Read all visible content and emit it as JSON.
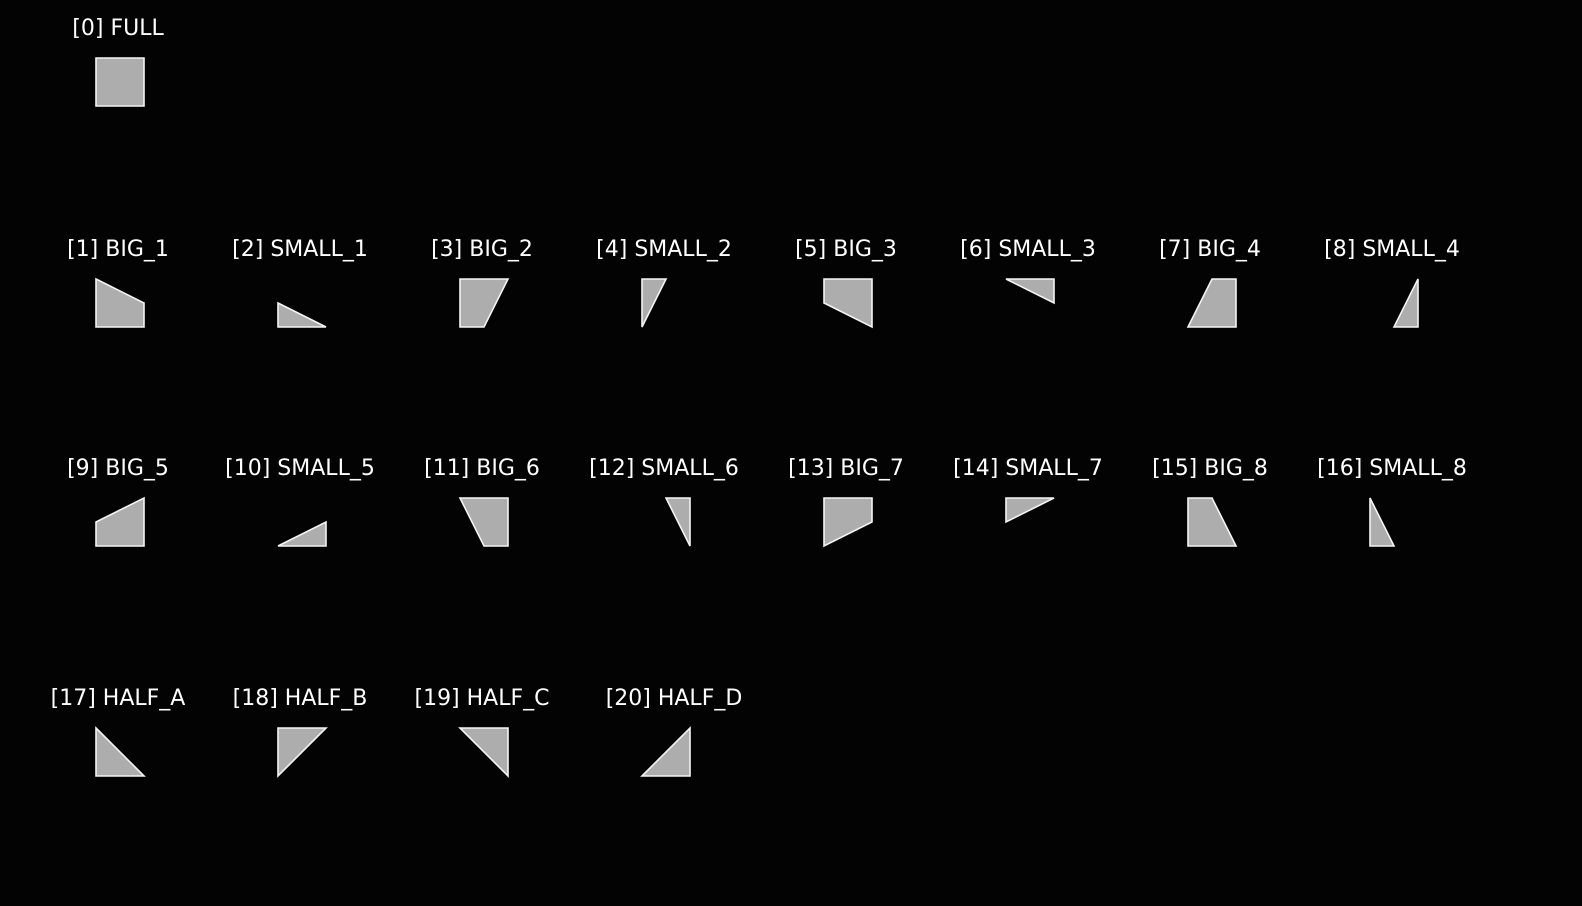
{
  "colors": {
    "background": "#030303",
    "label": "#ffffff",
    "shape_fill": "#adadad",
    "shape_outline": "#f4f4f4"
  },
  "tiles": [
    {
      "label": "[0] FULL",
      "shape": "full"
    },
    {
      "label": "[1] BIG_1",
      "shape": "big_1"
    },
    {
      "label": "[2] SMALL_1",
      "shape": "small_1"
    },
    {
      "label": "[3] BIG_2",
      "shape": "big_2"
    },
    {
      "label": "[4] SMALL_2",
      "shape": "small_2"
    },
    {
      "label": "[5] BIG_3",
      "shape": "big_3"
    },
    {
      "label": "[6] SMALL_3",
      "shape": "small_3"
    },
    {
      "label": "[7] BIG_4",
      "shape": "big_4"
    },
    {
      "label": "[8] SMALL_4",
      "shape": "small_4"
    },
    {
      "label": "[9] BIG_5",
      "shape": "big_5"
    },
    {
      "label": "[10] SMALL_5",
      "shape": "small_5"
    },
    {
      "label": "[11] BIG_6",
      "shape": "big_6"
    },
    {
      "label": "[12] SMALL_6",
      "shape": "small_6"
    },
    {
      "label": "[13] BIG_7",
      "shape": "big_7"
    },
    {
      "label": "[14] SMALL_7",
      "shape": "small_7"
    },
    {
      "label": "[15] BIG_8",
      "shape": "big_8"
    },
    {
      "label": "[16] SMALL_8",
      "shape": "small_8"
    },
    {
      "label": "[17] HALF_A",
      "shape": "half_a"
    },
    {
      "label": "[18] HALF_B",
      "shape": "half_b"
    },
    {
      "label": "[19] HALF_C",
      "shape": "half_c"
    },
    {
      "label": "[20] HALF_D",
      "shape": "half_d"
    }
  ]
}
